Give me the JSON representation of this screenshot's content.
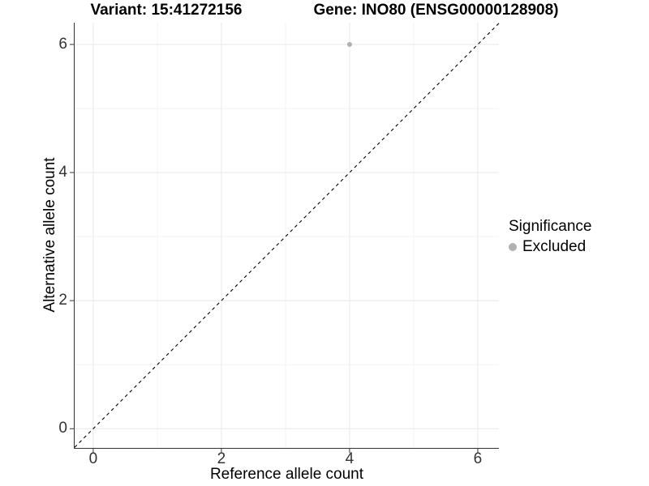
{
  "chart_data": {
    "type": "scatter",
    "title_left": "Variant: 15:41272156",
    "title_right": "Gene: INO80 (ENSG00000128908)",
    "xlabel": "Reference allele count",
    "ylabel": "Alternative allele count",
    "xlim": [
      -0.29,
      6.33
    ],
    "ylim": [
      -0.3,
      6.34
    ],
    "x_major_ticks": [
      0,
      2,
      4,
      6
    ],
    "y_major_ticks": [
      0,
      2,
      4,
      6
    ],
    "x_minor_ticks": [
      1,
      3,
      5
    ],
    "y_minor_ticks": [
      1,
      3,
      5
    ],
    "grid": true,
    "reference_line": {
      "type": "identity",
      "style": "dashed",
      "color": "#000000"
    },
    "series": [
      {
        "name": "Excluded",
        "color": "#b0b0b0",
        "points": [
          [
            4,
            6
          ]
        ]
      }
    ],
    "legend": {
      "title": "Significance",
      "position": "right",
      "entries": [
        {
          "label": "Excluded",
          "color": "#b0b0b0"
        }
      ]
    }
  },
  "colors": {
    "background": "#ffffff",
    "grid_major": "#e8e8e8",
    "grid_minor": "#f3f3f3",
    "axis_line": "#333333",
    "tick_label": "#333333",
    "point": "#b0b0b0"
  }
}
